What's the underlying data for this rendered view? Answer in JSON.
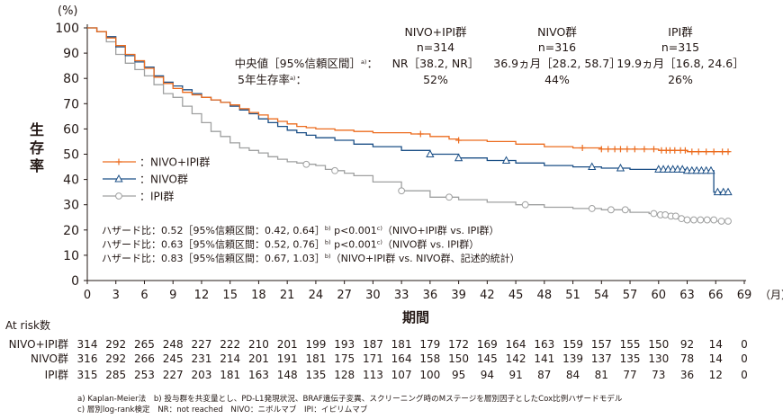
{
  "chart_data": {
    "type": "line",
    "title": "",
    "xlabel": "期間",
    "xunit": "（月）",
    "ylabel": "生存率",
    "yunit": "(%)",
    "xlim": [
      0,
      69
    ],
    "ylim": [
      0,
      100
    ],
    "xticks": [
      0,
      3,
      6,
      9,
      12,
      15,
      18,
      21,
      24,
      27,
      30,
      33,
      36,
      39,
      42,
      45,
      48,
      51,
      54,
      57,
      60,
      63,
      66,
      69
    ],
    "yticks": [
      0,
      10,
      20,
      30,
      40,
      50,
      60,
      70,
      80,
      90,
      100
    ],
    "grid": false,
    "legend_position": "left-middle",
    "series": [
      {
        "name": "NIVO+IPI群",
        "color": "#ec6c1f",
        "marker": "plus",
        "points": [
          [
            0,
            100
          ],
          [
            1,
            98.5
          ],
          [
            2,
            96
          ],
          [
            3,
            93
          ],
          [
            4,
            89.5
          ],
          [
            5,
            87
          ],
          [
            6,
            84
          ],
          [
            7,
            80.5
          ],
          [
            8,
            78
          ],
          [
            9,
            76
          ],
          [
            10,
            74.5
          ],
          [
            11,
            73.5
          ],
          [
            12,
            72.5
          ],
          [
            13,
            71.5
          ],
          [
            14,
            70.5
          ],
          [
            15,
            69.5
          ],
          [
            16,
            68
          ],
          [
            17,
            66.5
          ],
          [
            18,
            65.5
          ],
          [
            19,
            64
          ],
          [
            20,
            63
          ],
          [
            21,
            62
          ],
          [
            22,
            61
          ],
          [
            23,
            60.5
          ],
          [
            24,
            60
          ],
          [
            26,
            59.5
          ],
          [
            28,
            59
          ],
          [
            30,
            58.5
          ],
          [
            32,
            58.5
          ],
          [
            34,
            58
          ],
          [
            36,
            57
          ],
          [
            38,
            56
          ],
          [
            39,
            55.5
          ],
          [
            42,
            55
          ],
          [
            45,
            54
          ],
          [
            48,
            53
          ],
          [
            51,
            52.5
          ],
          [
            54,
            52
          ],
          [
            57,
            52
          ],
          [
            60,
            51.5
          ],
          [
            63,
            51
          ],
          [
            66,
            51
          ],
          [
            67.5,
            51
          ]
        ],
        "censored_x": [
          35,
          39,
          52,
          54,
          54.7,
          55.4,
          56,
          56.7,
          57.5,
          58.5,
          59.5,
          60.3,
          60.8,
          61.2,
          61.7,
          62.3,
          62.8,
          63.5,
          64.2,
          65,
          65.8,
          66.7,
          67.3
        ]
      },
      {
        "name": "NIVO群",
        "color": "#1b4f86",
        "marker": "triangle",
        "points": [
          [
            0,
            100
          ],
          [
            1,
            98.5
          ],
          [
            2,
            96.5
          ],
          [
            3,
            92.5
          ],
          [
            4,
            89
          ],
          [
            5,
            86.5
          ],
          [
            6,
            84.5
          ],
          [
            7,
            81
          ],
          [
            8,
            78.5
          ],
          [
            9,
            77
          ],
          [
            10,
            75.5
          ],
          [
            11,
            74
          ],
          [
            12,
            72.5
          ],
          [
            13,
            71.5
          ],
          [
            14,
            70.5
          ],
          [
            15,
            69
          ],
          [
            16,
            67.5
          ],
          [
            17,
            66
          ],
          [
            18,
            64
          ],
          [
            19,
            62.5
          ],
          [
            20,
            61
          ],
          [
            21,
            59.5
          ],
          [
            22,
            58.5
          ],
          [
            23,
            57.5
          ],
          [
            24,
            56.5
          ],
          [
            26,
            55.5
          ],
          [
            28,
            54
          ],
          [
            30,
            53
          ],
          [
            33,
            51.5
          ],
          [
            36,
            50
          ],
          [
            39,
            48.5
          ],
          [
            42,
            47.5
          ],
          [
            45,
            46.5
          ],
          [
            48,
            45.5
          ],
          [
            51,
            45
          ],
          [
            54,
            44.5
          ],
          [
            57,
            44
          ],
          [
            60,
            44
          ],
          [
            63,
            43.5
          ],
          [
            65,
            43.5
          ],
          [
            65.5,
            43.5
          ],
          [
            65.8,
            35
          ],
          [
            67.5,
            35
          ]
        ],
        "censored_x": [
          36,
          39,
          44,
          53,
          56,
          60,
          60.5,
          61,
          61.5,
          62,
          62.5,
          63,
          63.5,
          64,
          64.5,
          65,
          65.5,
          66.2,
          66.8,
          67.3
        ]
      },
      {
        "name": "IPI群",
        "color": "#9fa0a0",
        "marker": "circle",
        "points": [
          [
            0,
            100
          ],
          [
            1,
            98.5
          ],
          [
            2,
            94.5
          ],
          [
            3,
            89.5
          ],
          [
            4,
            86
          ],
          [
            5,
            83.5
          ],
          [
            6,
            81
          ],
          [
            7,
            77.5
          ],
          [
            8,
            74
          ],
          [
            9,
            72.5
          ],
          [
            10,
            69
          ],
          [
            11,
            66
          ],
          [
            12,
            62.5
          ],
          [
            13,
            59
          ],
          [
            14,
            57
          ],
          [
            15,
            54.5
          ],
          [
            16,
            52.5
          ],
          [
            17,
            51.5
          ],
          [
            18,
            50.5
          ],
          [
            19,
            49
          ],
          [
            20,
            48
          ],
          [
            21,
            47
          ],
          [
            22,
            46.5
          ],
          [
            23,
            46
          ],
          [
            24,
            45.5
          ],
          [
            25,
            44
          ],
          [
            26,
            43.5
          ],
          [
            27,
            42.5
          ],
          [
            28,
            41.5
          ],
          [
            30,
            39
          ],
          [
            33,
            35.5
          ],
          [
            36,
            33
          ],
          [
            39,
            32
          ],
          [
            42,
            31
          ],
          [
            45,
            30
          ],
          [
            48,
            29
          ],
          [
            51,
            28.5
          ],
          [
            54,
            28
          ],
          [
            57,
            27
          ],
          [
            59,
            26.5
          ],
          [
            60,
            26
          ],
          [
            61,
            25.5
          ],
          [
            62,
            24.5
          ],
          [
            63,
            24
          ],
          [
            66,
            23.5
          ],
          [
            67.5,
            23.5
          ]
        ],
        "censored_x": [
          23,
          26,
          33,
          38,
          46,
          53,
          55,
          56.5,
          59.5,
          60.2,
          60.7,
          61.3,
          61.8,
          62.4,
          63,
          63.7,
          64.4,
          65.1,
          65.8,
          66.6,
          67.3
        ]
      }
    ],
    "summary": {
      "headers": [
        "NIVO+IPI群\nn=314",
        "NIVO群\nn=316",
        "IPI群\nn=315"
      ],
      "median_label": "中央値［95%信頼区間］",
      "median_sup": "a)",
      "median_values": [
        "NR［38.2, NR］",
        "36.9ヵ月［28.2, 58.7］",
        "19.9ヵ月［16.8, 24.6］"
      ],
      "rate_label": "5年生存率",
      "rate_sup": "a)",
      "rate_values": [
        "52%",
        "44%",
        "26%"
      ]
    },
    "hazard": [
      {
        "text": "ハザード比：0.52［95%信頼区間：0.42, 0.64］",
        "sup1": "b)",
        "p": " p<0.001",
        "sup2": "c)",
        "cmp": "（NIVO+IPI群 vs. IPI群）"
      },
      {
        "text": "ハザード比：0.63［95%信頼区間：0.52, 0.76］",
        "sup1": "b)",
        "p": " p<0.001",
        "sup2": "c)",
        "cmp": "（NIVO群 vs. IPI群）"
      },
      {
        "text": "ハザード比：0.83［95%信頼区間：0.67, 1.03］",
        "sup1": "b)",
        "p": "",
        "sup2": "",
        "cmp": "（NIVO+IPI群 vs. NIVO群、記述的統計）"
      }
    ],
    "at_risk": {
      "title": "At risk数",
      "rows": [
        {
          "label": "NIVO+IPI群",
          "values": [
            314,
            292,
            265,
            248,
            227,
            222,
            210,
            201,
            199,
            193,
            187,
            181,
            179,
            172,
            169,
            164,
            163,
            159,
            157,
            155,
            150,
            92,
            14,
            0
          ]
        },
        {
          "label": "NIVO群",
          "values": [
            316,
            292,
            266,
            245,
            231,
            214,
            201,
            191,
            181,
            175,
            171,
            164,
            158,
            150,
            145,
            142,
            141,
            139,
            137,
            135,
            130,
            78,
            14,
            0
          ]
        },
        {
          "label": "IPI群",
          "values": [
            315,
            285,
            253,
            227,
            203,
            181,
            163,
            148,
            135,
            128,
            113,
            107,
            100,
            95,
            94,
            91,
            87,
            84,
            81,
            77,
            73,
            36,
            12,
            0
          ]
        }
      ]
    },
    "footnotes": [
      "a) Kaplan-Meier法　b) 投与群を共変量とし、PD-L1発現状況、BRAF遺伝子変異、スクリーニング時のMステージを層別因子としたCox比例ハザードモデル",
      "c) 層別log-rank検定　NR：not reached　NIVO：ニボルマブ　IPI：イピリムマブ"
    ]
  }
}
